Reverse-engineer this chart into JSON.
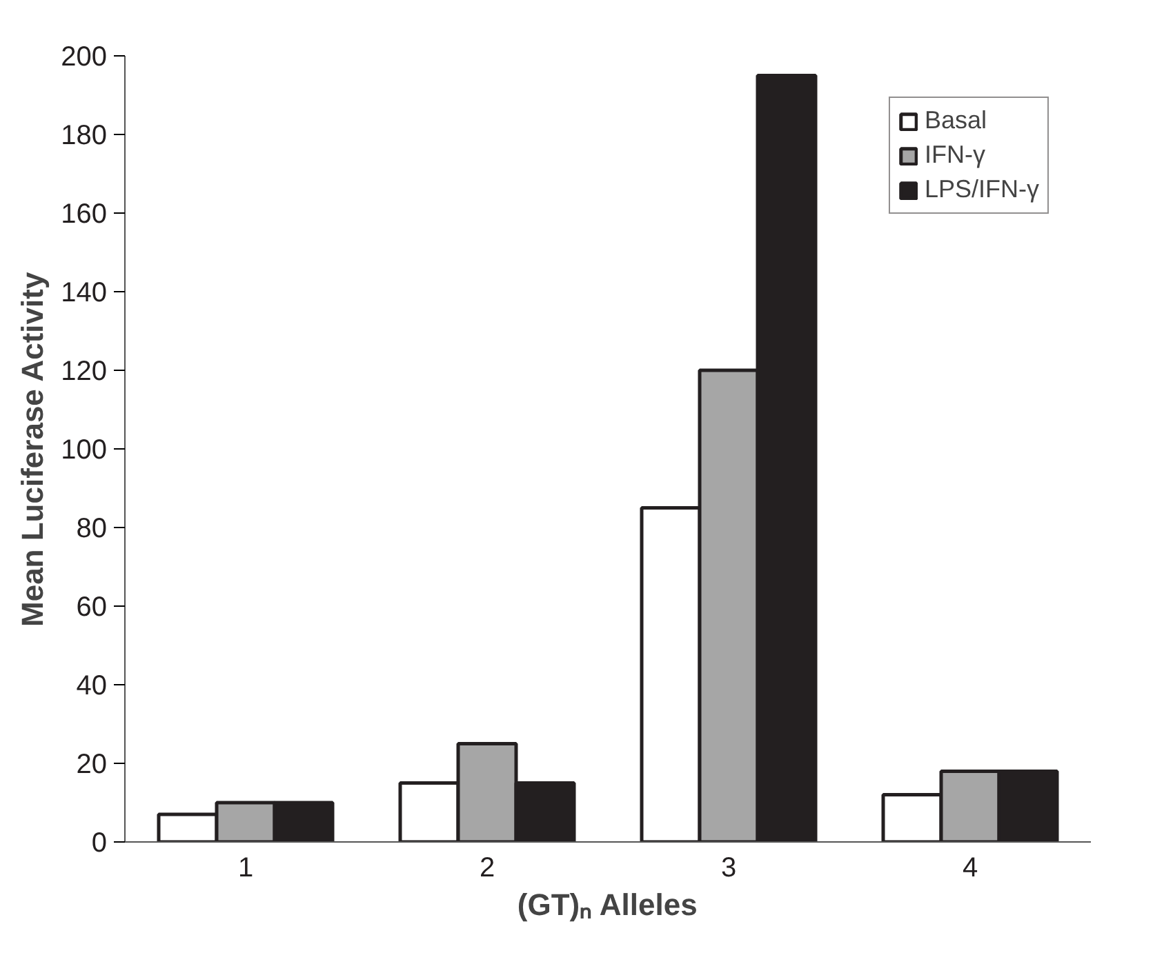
{
  "chart_data": {
    "type": "bar",
    "xlabel": "(GT)ₙ Alleles",
    "ylabel": "Mean Luciferase Activity",
    "categories": [
      "1",
      "2",
      "3",
      "4"
    ],
    "series": [
      {
        "name": "Basal",
        "color": "#ffffff",
        "values": [
          7,
          15,
          85,
          12
        ]
      },
      {
        "name": "IFN-γ",
        "color": "#a6a6a6",
        "values": [
          10,
          25,
          120,
          18
        ]
      },
      {
        "name": "LPS/IFN-γ",
        "color": "#231f20",
        "values": [
          10,
          15,
          195,
          18
        ]
      }
    ],
    "ylim": [
      0,
      200
    ],
    "yticks": [
      0,
      20,
      40,
      60,
      80,
      100,
      120,
      140,
      160,
      180,
      200
    ],
    "grid": false,
    "legend": "top right"
  }
}
